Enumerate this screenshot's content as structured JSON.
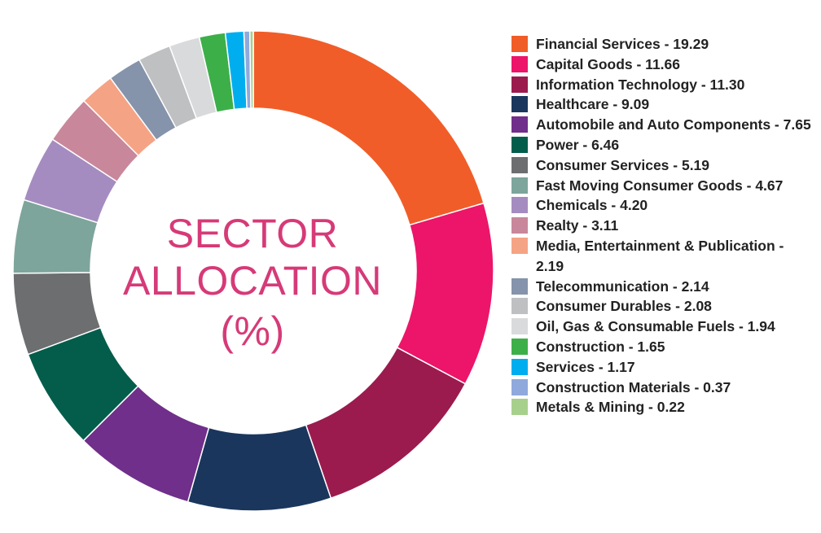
{
  "chart_data": {
    "type": "pie",
    "title_lines": [
      "SECTOR",
      "ALLOCATION",
      "(%)"
    ],
    "title_color": "#d63a78",
    "series": [
      {
        "label": "Financial Services - 19.29",
        "name": "Financial Services",
        "value": 19.29,
        "color": "#f15d28"
      },
      {
        "label": "Capital Goods - 11.66",
        "name": "Capital Goods",
        "value": 11.66,
        "color": "#ec1569"
      },
      {
        "label": "Information Technology - 11.30",
        "name": "Information Technology",
        "value": 11.3,
        "color": "#9b1b4e"
      },
      {
        "label": "Healthcare - 9.09",
        "name": "Healthcare",
        "value": 9.09,
        "color": "#1b365d"
      },
      {
        "label": "Automobile and Auto Components - 7.65",
        "name": "Automobile and Auto Components",
        "value": 7.65,
        "color": "#702f8a"
      },
      {
        "label": "Power - 6.46",
        "name": "Power",
        "value": 6.46,
        "color": "#045d4b"
      },
      {
        "label": "Consumer Services - 5.19",
        "name": "Consumer Services",
        "value": 5.19,
        "color": "#6d6e70"
      },
      {
        "label": "Fast Moving Consumer Goods - 4.67",
        "name": "Fast Moving Consumer Goods",
        "value": 4.67,
        "color": "#7da59b"
      },
      {
        "label": "Chemicals - 4.20",
        "name": "Chemicals",
        "value": 4.2,
        "color": "#a58cc0"
      },
      {
        "label": "Realty - 3.11",
        "name": "Realty",
        "value": 3.11,
        "color": "#c9879b"
      },
      {
        "label": "Media, Entertainment & Publication - 2.19",
        "name": "Media, Entertainment & Publication",
        "value": 2.19,
        "color": "#f5a385"
      },
      {
        "label": "Telecommunication - 2.14",
        "name": "Telecommunication",
        "value": 2.14,
        "color": "#8593ab"
      },
      {
        "label": "Consumer Durables - 2.08",
        "name": "Consumer Durables",
        "value": 2.08,
        "color": "#bfc0c2"
      },
      {
        "label": "Oil, Gas & Consumable Fuels - 1.94",
        "name": "Oil, Gas & Consumable Fuels",
        "value": 1.94,
        "color": "#d9dadb"
      },
      {
        "label": "Construction - 1.65",
        "name": "Construction",
        "value": 1.65,
        "color": "#3daf49"
      },
      {
        "label": "Services - 1.17",
        "name": "Services",
        "value": 1.17,
        "color": "#00aeef"
      },
      {
        "label": "Construction Materials - 0.37",
        "name": "Construction Materials",
        "value": 0.37,
        "color": "#8fa9dc"
      },
      {
        "label": "Metals & Mining - 0.22",
        "name": "Metals & Mining",
        "value": 0.22,
        "color": "#a8d08d"
      }
    ],
    "legend_position": "right"
  }
}
